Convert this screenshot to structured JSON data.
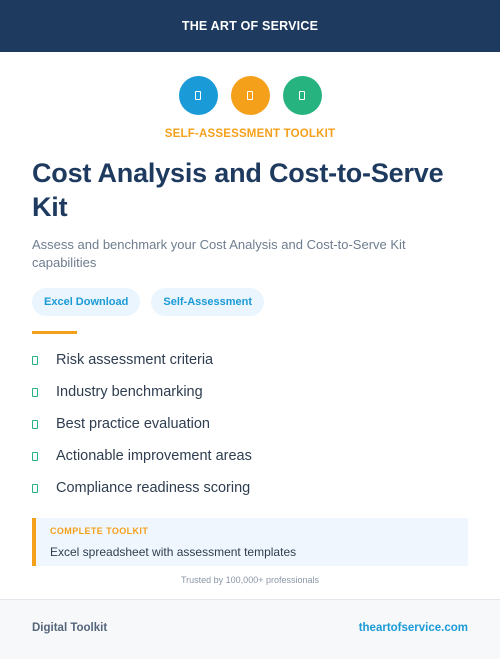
{
  "header": {
    "brand": "THE ART OF SERVICE"
  },
  "icons": [
    {
      "name": "document-icon",
      "color": "#1a9ad6"
    },
    {
      "name": "document-icon",
      "color": "#f5a01a"
    },
    {
      "name": "document-icon",
      "color": "#26b37f"
    }
  ],
  "eyebrow": "SELF-ASSESSMENT TOOLKIT",
  "title": "Cost Analysis and Cost-to-Serve Kit",
  "subtitle": "Assess and benchmark your Cost Analysis and Cost-to-Serve Kit capabilities",
  "tags": [
    "Excel Download",
    "Self-Assessment"
  ],
  "features": [
    "Risk assessment criteria",
    "Industry benchmarking",
    "Best practice evaluation",
    "Actionable improvement areas",
    "Compliance readiness scoring"
  ],
  "callout": {
    "kicker": "COMPLETE TOOLKIT",
    "text": "Excel spreadsheet with assessment templates"
  },
  "trusted": "Trusted by 100,000+ professionals",
  "footer": {
    "left": "Digital Toolkit",
    "right": "theartofservice.com"
  },
  "colors": {
    "navy": "#1e3a5f",
    "orange": "#f5a01a",
    "blue": "#1a9ad6",
    "green": "#26b37f"
  }
}
